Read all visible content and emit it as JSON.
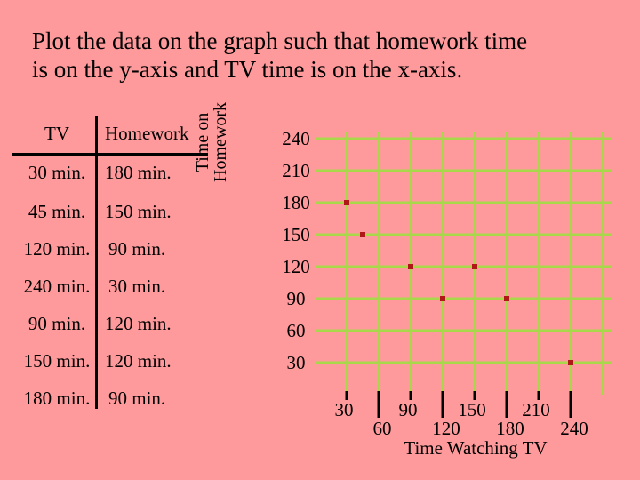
{
  "title_line1": "Plot the data on the graph such that homework time",
  "title_line2": "is on the y-axis and TV time is on the x-axis.",
  "table": {
    "header_tv": "TV",
    "header_homework": "Homework",
    "rows": [
      {
        "tv": "30 min.",
        "hw": "180 min."
      },
      {
        "tv": "45 min.",
        "hw": "150 min."
      },
      {
        "tv": "120 min.",
        "hw": "90 min."
      },
      {
        "tv": "240 min.",
        "hw": "30 min."
      },
      {
        "tv": "90 min.",
        "hw": "120 min."
      },
      {
        "tv": "150 min.",
        "hw": "120 min."
      },
      {
        "tv": "180 min.",
        "hw": "90 min."
      }
    ]
  },
  "chart_data": {
    "type": "scatter",
    "xlabel": "Time Watching TV",
    "ylabel_line1": "Time on",
    "ylabel_line2": "Homework",
    "x_ticks": [
      "30",
      "60",
      "90",
      "120",
      "150",
      "180",
      "210",
      "240"
    ],
    "y_ticks": [
      "30",
      "60",
      "90",
      "120",
      "150",
      "180",
      "210",
      "240"
    ],
    "xlim": [
      30,
      270
    ],
    "ylim": [
      30,
      240
    ],
    "grid": true,
    "grid_color": "#a8d84a",
    "point_color": "#b01818",
    "points": [
      {
        "x": 30,
        "y": 180
      },
      {
        "x": 45,
        "y": 150
      },
      {
        "x": 120,
        "y": 90
      },
      {
        "x": 240,
        "y": 30
      },
      {
        "x": 90,
        "y": 120
      },
      {
        "x": 150,
        "y": 120
      },
      {
        "x": 180,
        "y": 90
      }
    ]
  }
}
